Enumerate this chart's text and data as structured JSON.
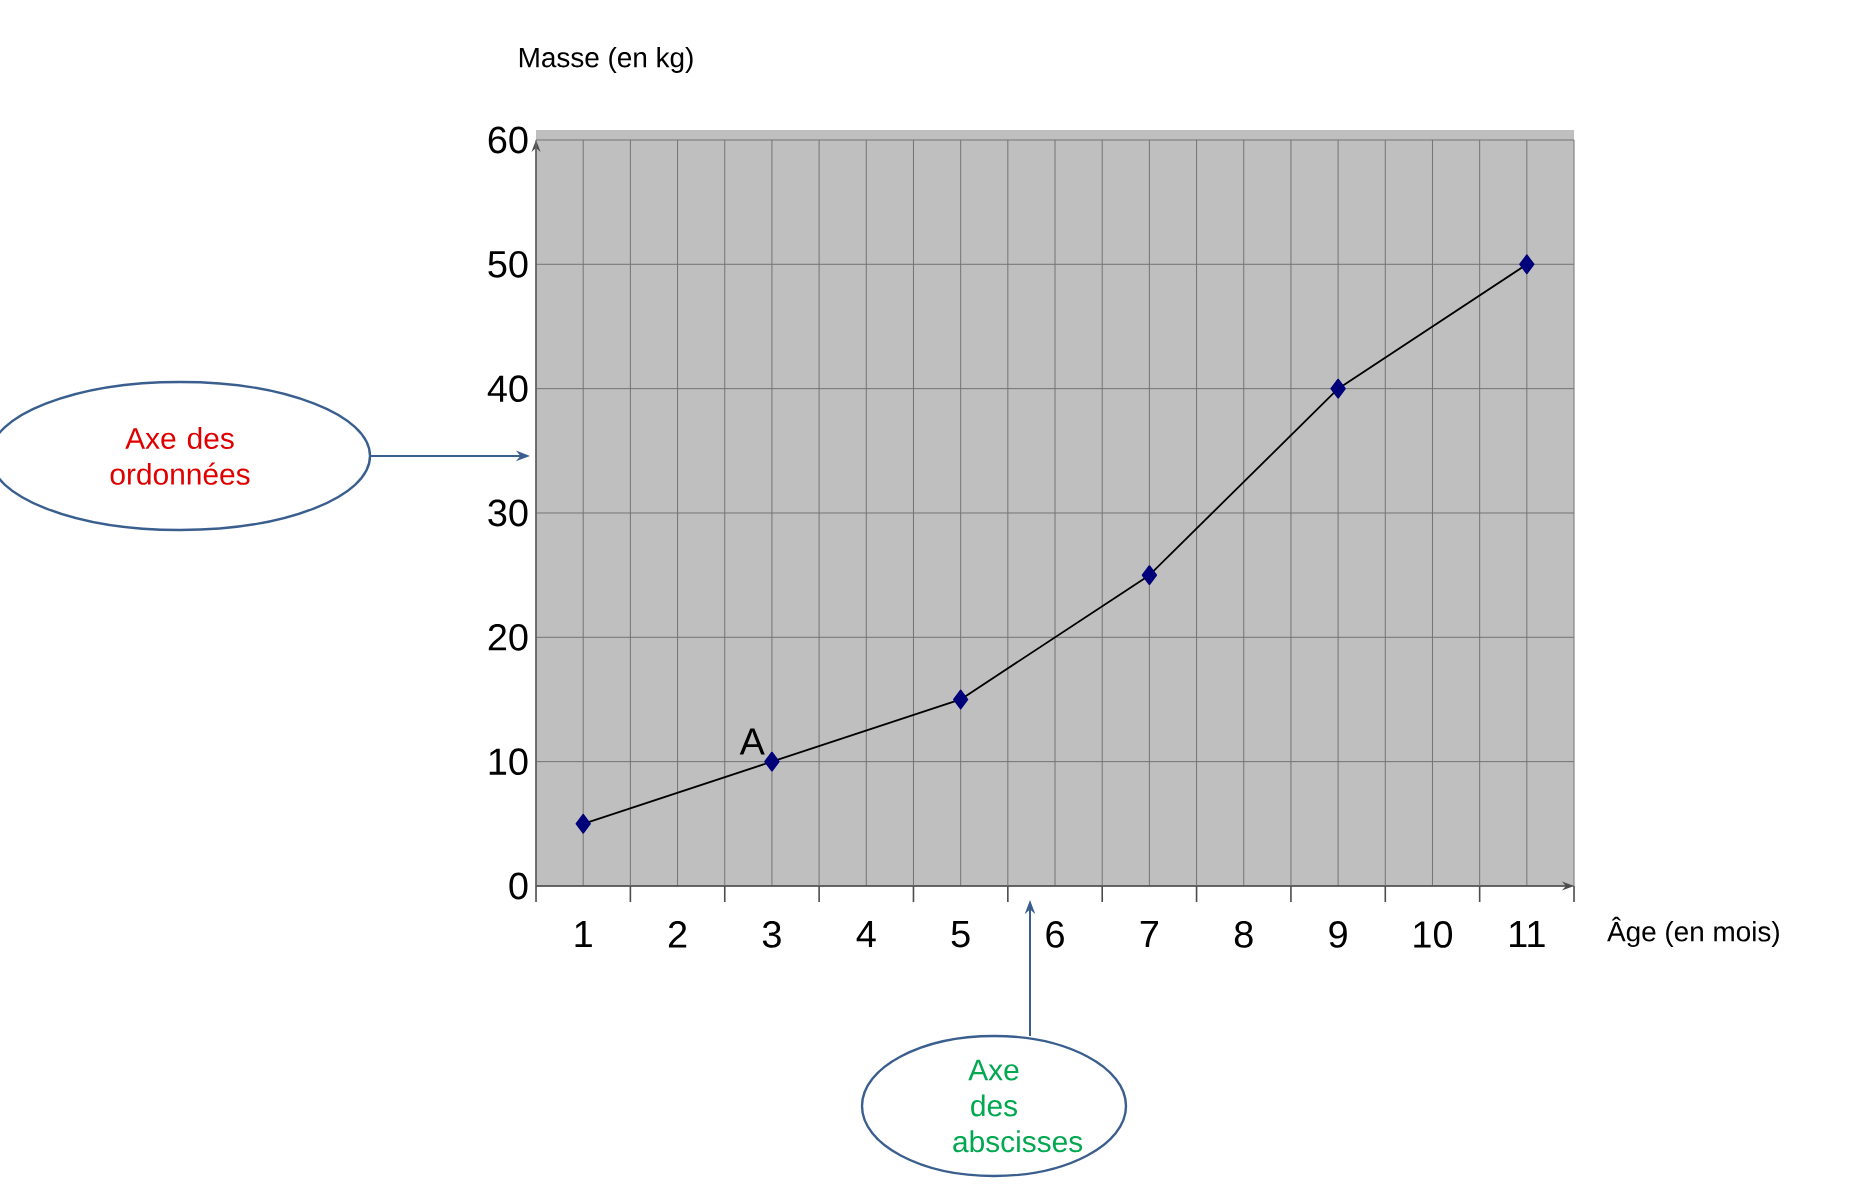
{
  "chart_data": {
    "type": "line",
    "xlabel": "Âge (en mois)",
    "ylabel": "Masse (en kg)",
    "x": [
      1,
      3,
      5,
      7,
      9,
      11
    ],
    "series": [
      {
        "color": "#00007a",
        "values": [
          5,
          10,
          15,
          25,
          40,
          50
        ]
      }
    ],
    "xlim": [
      0.5,
      11.5
    ],
    "ylim": [
      0,
      60
    ],
    "xticks": [
      {
        "value": 0.5,
        "label": null
      },
      1,
      {
        "value": 1.5,
        "label": null
      },
      2,
      {
        "value": 2.5,
        "label": null
      },
      3,
      {
        "value": 3.5,
        "label": null
      },
      4,
      {
        "value": 4.5,
        "label": null
      },
      5,
      {
        "value": 5.5,
        "label": null
      },
      6,
      {
        "value": 6.5,
        "label": null
      },
      7,
      {
        "value": 7.5,
        "label": null
      },
      8,
      {
        "value": 8.5,
        "label": null
      },
      9,
      {
        "value": 9.5,
        "label": null
      },
      10,
      {
        "value": 10.5,
        "label": null
      },
      11,
      {
        "value": 11.5,
        "label": null
      }
    ],
    "yticks": [
      0,
      10,
      20,
      30,
      40,
      50,
      60
    ],
    "grid": true,
    "marker": "diamond",
    "line_style": "solid",
    "annotations": [
      {
        "text": "A",
        "x": 3,
        "y": 10
      },
      "Axe des ordonnées",
      "Axe des abscisses"
    ]
  }
}
